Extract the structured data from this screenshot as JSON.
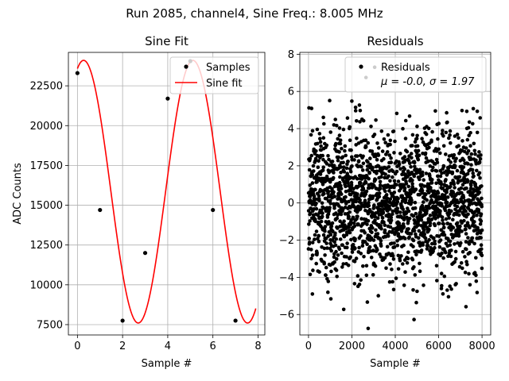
{
  "figure": {
    "suptitle": "Run 2085, channel4, Sine Freq.: 8.005 MHz"
  },
  "chart_data": [
    {
      "type": "scatter",
      "title": "Sine Fit",
      "xlabel": "Sample #",
      "ylabel": "ADC Counts",
      "xlim": [
        -0.4,
        8.3
      ],
      "ylim": [
        6850,
        24600
      ],
      "xticks": [
        0,
        2,
        4,
        6,
        8
      ],
      "yticks": [
        7500,
        10000,
        12500,
        15000,
        17500,
        20000,
        22500
      ],
      "grid": true,
      "legend": {
        "location": "upper right",
        "entries": [
          "Samples",
          "Sine fit"
        ]
      },
      "series": [
        {
          "name": "Samples",
          "kind": "points",
          "color": "#000000",
          "x": [
            0,
            1,
            2,
            3,
            4,
            5,
            6,
            7
          ],
          "y": [
            23300,
            14700,
            7750,
            12000,
            21700,
            24050,
            14700,
            7750
          ]
        },
        {
          "name": "Sine fit",
          "kind": "line",
          "color": "#ff0000",
          "model": {
            "offset": 15850,
            "amplitude": 8250,
            "period_samples": 4.84,
            "phase_at_zero_deg": 69.6
          },
          "x_range": [
            0,
            7.9
          ]
        }
      ]
    },
    {
      "type": "scatter",
      "title": "Residuals",
      "xlabel": "Sample #",
      "ylabel": "",
      "xlim": [
        -400,
        8400
      ],
      "ylim": [
        -7.1,
        8.1
      ],
      "xticks": [
        0,
        2000,
        4000,
        6000,
        8000
      ],
      "yticks": [
        -6,
        -4,
        -2,
        0,
        2,
        4,
        6,
        8
      ],
      "grid": true,
      "legend": {
        "location": "upper right",
        "entries": [
          "Residuals"
        ],
        "stats_label": "μ = -0.0, σ = 1.97"
      },
      "series": [
        {
          "name": "Residuals",
          "kind": "points",
          "color": "#000000",
          "n_points": 8000,
          "mean": 0.0,
          "std": 1.97,
          "x_range": [
            0,
            7999
          ],
          "note_points": [
            {
              "x": 2650,
              "y": 6.75
            },
            {
              "x": 3050,
              "y": 7.3
            },
            {
              "x": 2750,
              "y": -6.75
            }
          ]
        }
      ]
    }
  ]
}
